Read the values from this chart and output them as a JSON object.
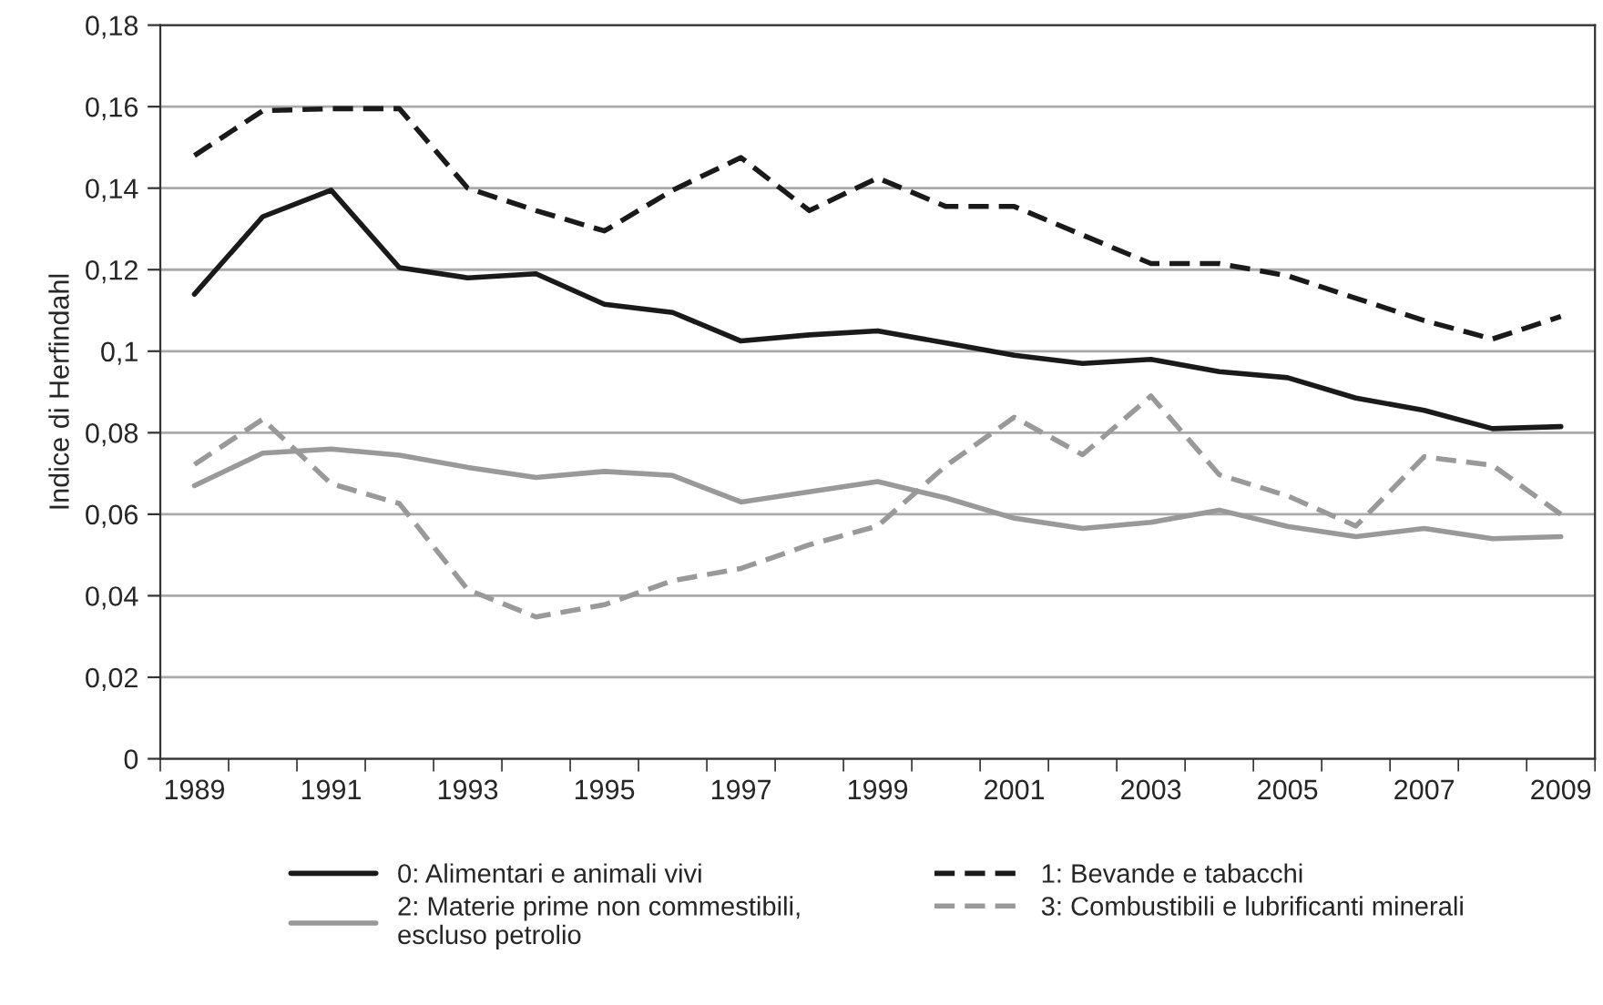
{
  "chart_data": {
    "type": "line",
    "ylabel": "Indice di Herfindahl",
    "categories": [
      "1989",
      null,
      "1991",
      null,
      "1993",
      null,
      "1995",
      null,
      "1997",
      null,
      "1999",
      null,
      "2001",
      null,
      "2003",
      null,
      "2005",
      null,
      "2007",
      null,
      "2009"
    ],
    "series": [
      {
        "name": "0: Alimentari e animali vivi",
        "color": "#1a1a1a",
        "line_style": "solid",
        "values": [
          0.114,
          0.133,
          0.1395,
          0.1205,
          0.118,
          0.119,
          0.1115,
          0.1095,
          0.1025,
          0.104,
          0.105,
          0.102,
          0.099,
          0.097,
          0.098,
          0.095,
          0.0935,
          0.0885,
          0.0855,
          0.081,
          0.0815
        ]
      },
      {
        "name": "1: Bevande e tabacchi",
        "color": "#1a1a1a",
        "line_style": "dashed",
        "values": [
          0.148,
          0.159,
          0.1595,
          0.1595,
          0.14,
          0.1345,
          0.1295,
          0.1395,
          0.1475,
          0.1345,
          0.1425,
          0.1355,
          0.1355,
          0.1285,
          0.1215,
          0.1215,
          0.1185,
          0.113,
          0.1075,
          0.103,
          0.1085
        ]
      },
      {
        "name": "2: Materie prime non commestibili,\nescluso petrolio",
        "color": "#999999",
        "line_style": "solid",
        "values": [
          0.067,
          0.075,
          0.076,
          0.0745,
          0.0715,
          0.069,
          0.0705,
          0.0695,
          0.063,
          0.0655,
          0.068,
          0.064,
          0.059,
          0.0565,
          0.058,
          0.061,
          0.057,
          0.0545,
          0.0565,
          0.054,
          0.0545
        ]
      },
      {
        "name": "3: Combustibili e lubrificanti minerali",
        "color": "#999999",
        "line_style": "dashed",
        "values": [
          0.0722,
          0.0833,
          0.0675,
          0.0626,
          0.0415,
          0.0348,
          0.0378,
          0.0437,
          0.0467,
          0.0525,
          0.0571,
          0.0719,
          0.0838,
          0.0746,
          0.089,
          0.0697,
          0.0645,
          0.0571,
          0.0741,
          0.072,
          0.06
        ]
      }
    ],
    "ylim": [
      0,
      0.18
    ],
    "yticks": [
      {
        "value": 0,
        "label": "0"
      },
      {
        "value": 0.02,
        "label": "0,02"
      },
      {
        "value": 0.04,
        "label": "0,04"
      },
      {
        "value": 0.06,
        "label": "0,06"
      },
      {
        "value": 0.08,
        "label": "0,08"
      },
      {
        "value": 0.1,
        "label": "0,1"
      },
      {
        "value": 0.12,
        "label": "0,12"
      },
      {
        "value": 0.14,
        "label": "0,14"
      },
      {
        "value": 0.16,
        "label": "0,16"
      },
      {
        "value": 0.18,
        "label": "0,18"
      }
    ],
    "grid": "y",
    "legend": "bottom",
    "marker": "none"
  }
}
